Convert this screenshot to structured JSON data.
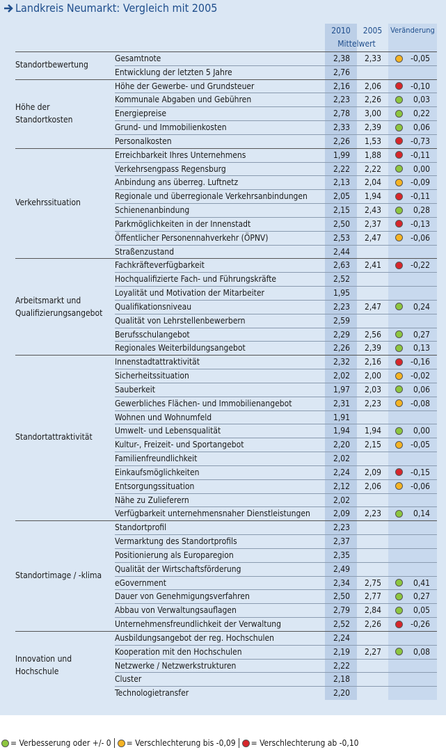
{
  "header": {
    "title": "Landkreis Neumarkt: Vergleich mit 2005"
  },
  "table": {
    "columns": [
      "2010",
      "2005",
      "Veränderung"
    ],
    "subheader": "Mittelwert",
    "groups": [
      {
        "label": "Standortbewertung",
        "rows": [
          {
            "item": "Gesamtnote",
            "v2010": "2,38",
            "v2005": "2,33",
            "change": "-0,05",
            "indicator": "#f5b324"
          },
          {
            "item": "Entwicklung der letzten 5 Jahre",
            "v2010": "2,76"
          }
        ]
      },
      {
        "label": "Höhe der\nStandortkosten",
        "rows": [
          {
            "item": "Höhe der Gewerbe- und Grundsteuer",
            "v2010": "2,16",
            "v2005": "2,06",
            "change": "-0,10",
            "indicator": "#d7262b"
          },
          {
            "item": "Kommunale Abgaben und Gebühren",
            "v2010": "2,23",
            "v2005": "2,26",
            "change": "0,03",
            "indicator": "#8dc63f"
          },
          {
            "item": "Energiepreise",
            "v2010": "2,78",
            "v2005": "3,00",
            "change": "0,22",
            "indicator": "#8dc63f"
          },
          {
            "item": "Grund- und Immobilienkosten",
            "v2010": "2,33",
            "v2005": "2,39",
            "change": "0,06",
            "indicator": "#8dc63f"
          },
          {
            "item": "Personalkosten",
            "v2010": "2,26",
            "v2005": "1,53",
            "change": "-0,73",
            "indicator": "#d7262b"
          }
        ]
      },
      {
        "label": "Verkehrssituation",
        "rows": [
          {
            "item": "Erreichbarkeit Ihres Unternehmens",
            "v2010": "1,99",
            "v2005": "1,88",
            "change": "-0,11",
            "indicator": "#d7262b"
          },
          {
            "item": "Verkehrsengpass Regensburg",
            "v2010": "2,22",
            "v2005": "2,22",
            "change": "0,00",
            "indicator": "#8dc63f"
          },
          {
            "item": "Anbindung ans überreg. Luftnetz",
            "v2010": "2,13",
            "v2005": "2,04",
            "change": "-0,09",
            "indicator": "#f5b324"
          },
          {
            "item": "Regionale und überregionale Verkehrsanbindungen",
            "v2010": "2,05",
            "v2005": "1,94",
            "change": "-0,11",
            "indicator": "#d7262b"
          },
          {
            "item": "Schienenanbindung",
            "v2010": "2,15",
            "v2005": "2,43",
            "change": "0,28",
            "indicator": "#8dc63f"
          },
          {
            "item": "Parkmöglichkeiten in der Innenstadt",
            "v2010": "2,50",
            "v2005": "2,37",
            "change": "-0,13",
            "indicator": "#d7262b"
          },
          {
            "item": "Öffentlicher Personennahverkehr (ÖPNV)",
            "v2010": "2,53",
            "v2005": "2,47",
            "change": "-0,06",
            "indicator": "#f5b324"
          },
          {
            "item": "Straßenzustand",
            "v2010": "2,44"
          }
        ]
      },
      {
        "label": "Arbeitsmarkt und\nQualifizierungsangebot",
        "rows": [
          {
            "item": "Fachkräfteverfügbarkeit",
            "v2010": "2,63",
            "v2005": "2,41",
            "change": "-0,22",
            "indicator": "#d7262b"
          },
          {
            "item": "Hochqualifizierte Fach- und Führungskräfte",
            "v2010": "2,52"
          },
          {
            "item": "Loyalität und Motivation der Mitarbeiter",
            "v2010": "1,95"
          },
          {
            "item": "Qualifikationsniveau",
            "v2010": "2,23",
            "v2005": "2,47",
            "change": "0,24",
            "indicator": "#8dc63f"
          },
          {
            "item": "Qualität von Lehrstellenbewerbern",
            "v2010": "2,59"
          },
          {
            "item": "Berufsschulangebot",
            "v2010": "2,29",
            "v2005": "2,56",
            "change": "0,27",
            "indicator": "#8dc63f"
          },
          {
            "item": "Regionales Weiterbildungsangebot",
            "v2010": "2,26",
            "v2005": "2,39",
            "change": "0,13",
            "indicator": "#8dc63f"
          }
        ]
      },
      {
        "label": "Standortattraktivität",
        "rows": [
          {
            "item": "Innenstadtattraktivität",
            "v2010": "2,32",
            "v2005": "2,16",
            "change": "-0,16",
            "indicator": "#d7262b"
          },
          {
            "item": "Sicherheitssituation",
            "v2010": "2,02",
            "v2005": "2,00",
            "change": "-0,02",
            "indicator": "#f5b324"
          },
          {
            "item": "Sauberkeit",
            "v2010": "1,97",
            "v2005": "2,03",
            "change": "0,06",
            "indicator": "#8dc63f"
          },
          {
            "item": "Gewerbliches Flächen- und Immobilienangebot",
            "v2010": "2,31",
            "v2005": "2,23",
            "change": "-0,08",
            "indicator": "#f5b324"
          },
          {
            "item": "Wohnen und Wohnumfeld",
            "v2010": "1,91"
          },
          {
            "item": "Umwelt- und Lebensqualität",
            "v2010": "1,94",
            "v2005": "1,94",
            "change": "0,00",
            "indicator": "#8dc63f"
          },
          {
            "item": "Kultur-, Freizeit- und Sportangebot",
            "v2010": "2,20",
            "v2005": "2,15",
            "change": "-0,05",
            "indicator": "#f5b324"
          },
          {
            "item": "Familienfreundlichkeit",
            "v2010": "2,02"
          },
          {
            "item": "Einkaufsmöglichkeiten",
            "v2010": "2,24",
            "v2005": "2,09",
            "change": "-0,15",
            "indicator": "#d7262b"
          },
          {
            "item": "Entsorgungssituation",
            "v2010": "2,12",
            "v2005": "2,06",
            "change": "-0,06",
            "indicator": "#f5b324"
          },
          {
            "item": "Nähe zu Zulieferern",
            "v2010": "2,02"
          },
          {
            "item": "Verfügbarkeit unternehmensnaher Dienstleistungen",
            "v2010": "2,09",
            "v2005": "2,23",
            "change": "0,14",
            "indicator": "#8dc63f"
          }
        ]
      },
      {
        "label": "Standortimage / -klima",
        "rows": [
          {
            "item": "Standortprofil",
            "v2010": "2,23"
          },
          {
            "item": "Vermarktung des Standortprofils",
            "v2010": "2,37"
          },
          {
            "item": "Positionierung als Europaregion",
            "v2010": "2,35"
          },
          {
            "item": "Qualität der Wirtschaftsförderung",
            "v2010": "2,49"
          },
          {
            "item": "eGovernment",
            "v2010": "2,34",
            "v2005": "2,75",
            "change": "0,41",
            "indicator": "#8dc63f"
          },
          {
            "item": "Dauer von Genehmigungsverfahren",
            "v2010": "2,50",
            "v2005": "2,77",
            "change": "0,27",
            "indicator": "#8dc63f"
          },
          {
            "item": "Abbau von Verwaltungsauflagen",
            "v2010": "2,79",
            "v2005": "2,84",
            "change": "0,05",
            "indicator": "#8dc63f"
          },
          {
            "item": "Unternehmensfreundlichkeit der Verwaltung",
            "v2010": "2,52",
            "v2005": "2,26",
            "change": "-0,26",
            "indicator": "#d7262b"
          }
        ]
      },
      {
        "label": "Innovation und\nHochschule",
        "rows": [
          {
            "item": "Ausbildungsangebot der reg. Hochschulen",
            "v2010": "2,24"
          },
          {
            "item": "Kooperation mit den Hochschulen",
            "v2010": "2,19",
            "v2005": "2,27",
            "change": "0,08",
            "indicator": "#8dc63f"
          },
          {
            "item": "Netzwerke / Netzwerkstrukturen",
            "v2010": "2,22"
          },
          {
            "item": "Cluster",
            "v2010": "2,18"
          },
          {
            "item": "Technologietransfer",
            "v2010": "2,20"
          }
        ]
      }
    ]
  },
  "legend": [
    {
      "label": "= Verbesserung oder +/- 0",
      "color": "#8dc63f"
    },
    {
      "label": "= Verschlechterung bis -0,09",
      "color": "#f5b324"
    },
    {
      "label": "= Verschlechterung ab -0,10",
      "color": "#d7262b"
    }
  ]
}
